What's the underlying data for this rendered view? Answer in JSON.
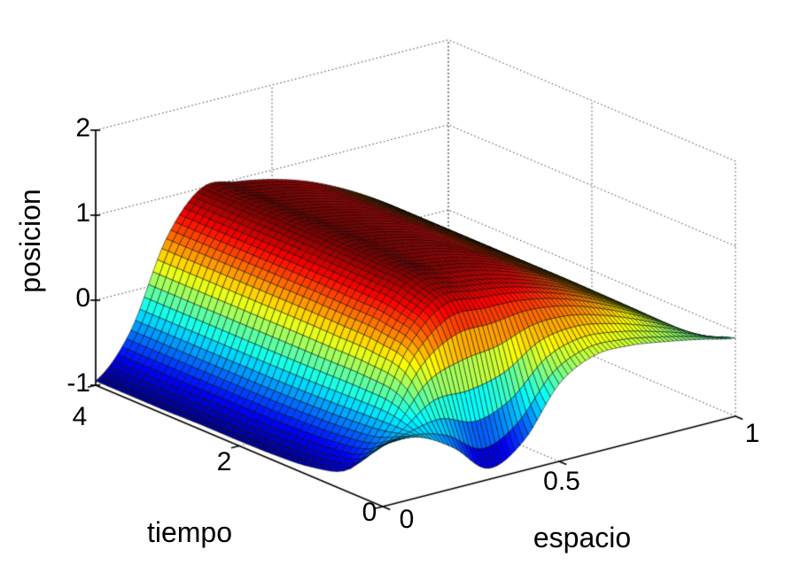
{
  "figure": {
    "background": "#ffffff"
  },
  "chart_data": {
    "type": "heatmap",
    "render_style": "3d-surface-mesh",
    "title": "",
    "xlabel": "espacio",
    "ylabel": "tiempo",
    "zlabel": "posicion",
    "x": [
      0,
      0.1,
      0.2,
      0.3,
      0.4,
      0.5,
      0.6,
      0.7,
      0.8,
      0.9,
      1
    ],
    "y": [
      0,
      0.5,
      1,
      1.5,
      2,
      2.5,
      3,
      3.5,
      4
    ],
    "z_grid": [
      [
        -0.27,
        -0.29,
        -0.52,
        -0.87,
        -0.65,
        -0.09,
        0.14,
        0.15,
        0.09,
        0.01,
        -0.08
      ],
      [
        -0.75,
        -0.39,
        0.32,
        0.64,
        0.65,
        0.66,
        0.59,
        0.45,
        0.26,
        0.03,
        -0.24
      ],
      [
        -0.89,
        -0.43,
        0.48,
        0.94,
        0.91,
        0.84,
        0.71,
        0.54,
        0.31,
        0.04,
        -0.29
      ],
      [
        -0.93,
        -0.45,
        0.5,
        0.98,
        0.95,
        0.88,
        0.75,
        0.56,
        0.33,
        0.04,
        -0.3
      ],
      [
        -0.94,
        -0.46,
        0.51,
        0.99,
        0.97,
        0.89,
        0.75,
        0.57,
        0.33,
        0.04,
        -0.3
      ],
      [
        -0.94,
        -0.46,
        0.51,
        1.0,
        0.97,
        0.89,
        0.76,
        0.57,
        0.33,
        0.04,
        -0.3
      ],
      [
        -0.95,
        -0.46,
        0.51,
        1.0,
        0.97,
        0.89,
        0.76,
        0.57,
        0.33,
        0.04,
        -0.3
      ],
      [
        -0.95,
        -0.46,
        0.51,
        1.0,
        0.97,
        0.89,
        0.76,
        0.57,
        0.33,
        0.04,
        -0.3
      ],
      [
        -0.95,
        -0.46,
        0.51,
        1.0,
        0.97,
        0.89,
        0.76,
        0.57,
        0.33,
        0.04,
        -0.3
      ]
    ],
    "xlim": [
      0,
      1
    ],
    "ylim": [
      0,
      4
    ],
    "zlim": [
      -1,
      2
    ],
    "xticks": [
      0,
      0.5,
      1
    ],
    "yticks": [
      0,
      2,
      4
    ],
    "zticks": [
      -1,
      0,
      1,
      2
    ],
    "xtick_labels": [
      "0",
      "0.5",
      "1"
    ],
    "ytick_labels": [
      "0",
      "2",
      "4"
    ],
    "ztick_labels": [
      "-1",
      "0",
      "1",
      "2"
    ],
    "colormap": "jet",
    "grid": true,
    "grid_line_style": "dotted",
    "axis_color": "#000000",
    "surface_edge_color": "#000000",
    "view": {
      "azimuth": -37.5,
      "elevation": 30
    }
  }
}
